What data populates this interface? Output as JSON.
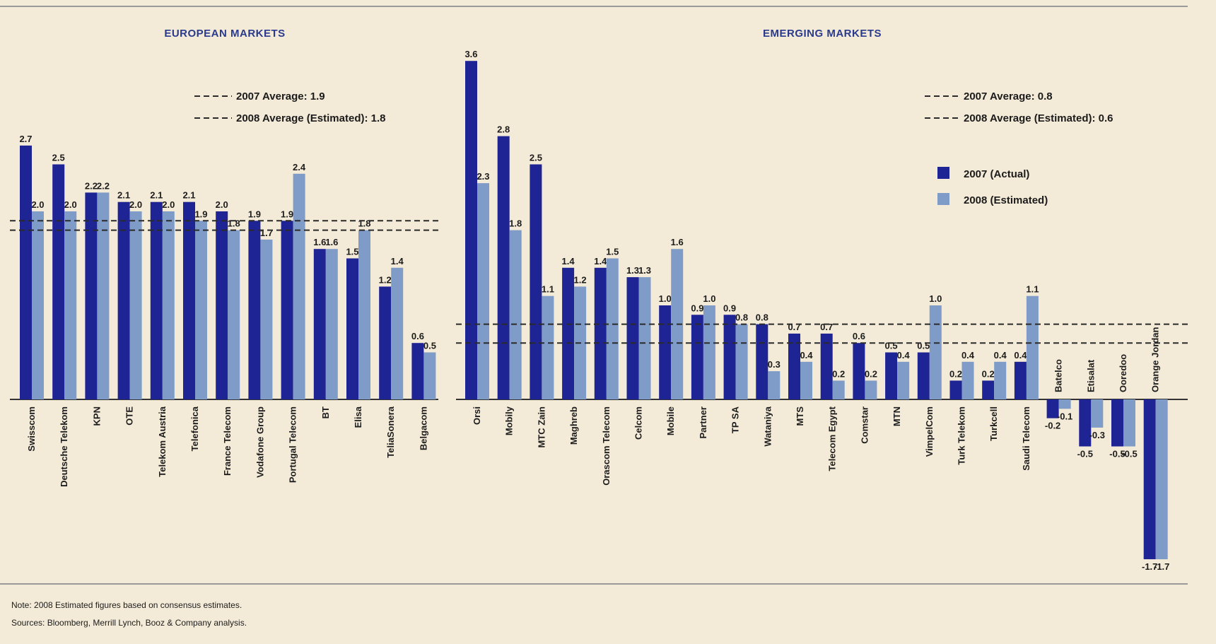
{
  "chart_data": [
    {
      "type": "bar",
      "title": "EUROPEAN MARKETS",
      "categories": [
        "Swisscom",
        "Deutsche Telekom",
        "KPN",
        "OTE",
        "Telekom Austria",
        "Telefonica",
        "France Telecom",
        "Vodafone Group",
        "Portugal Telecom",
        "BT",
        "Elisa",
        "TeliaSonera",
        "Belgacom"
      ],
      "series": [
        {
          "name": "2007 (Actual)",
          "values": [
            2.7,
            2.5,
            2.2,
            2.1,
            2.1,
            2.1,
            2.0,
            1.9,
            1.9,
            1.6,
            1.5,
            1.2,
            0.6
          ]
        },
        {
          "name": "2008 (Estimated)",
          "values": [
            2.0,
            2.0,
            2.2,
            2.0,
            2.0,
            1.9,
            1.8,
            1.7,
            2.4,
            1.6,
            1.8,
            1.4,
            0.5
          ]
        }
      ],
      "value_labels": [
        [
          "2.7",
          "2.5",
          "2.2",
          "2.1",
          "2.1",
          "2.1",
          "2.0",
          "1.9",
          "1.9",
          "1.6",
          "1.5",
          "1.2",
          "0.6"
        ],
        [
          "2.0",
          "2.0",
          "2.2",
          "2.0",
          "2.0",
          "1.9",
          "1.8",
          "1.7",
          "2.4",
          "1.6",
          "1.8",
          "1.4",
          "0.5"
        ]
      ],
      "reference_lines": [
        {
          "label": "2007 Average: 1.9",
          "value": 1.9
        },
        {
          "label": "2008 Average (Estimated): 1.8",
          "value": 1.8
        }
      ],
      "ylim": [
        -1.9,
        3.6
      ],
      "xlabel": "",
      "ylabel": ""
    },
    {
      "type": "bar",
      "title": "EMERGING MARKETS",
      "categories": [
        "Orsi",
        "Mobily",
        "MTC Zain",
        "Maghreb",
        "Orascom Telecom",
        "Celcom",
        "Mobile",
        "Partner",
        "TP SA",
        "Wataniya",
        "MTS",
        "Telecom Egypt",
        "Comstar",
        "MTN",
        "VimpelCom",
        "Turk Telekom",
        "Turkcell",
        "Saudi Telecom",
        "Batelco",
        "Etisalat",
        "Ooredoo",
        "Orange Jordan"
      ],
      "series": [
        {
          "name": "2007 (Actual)",
          "values": [
            3.6,
            2.8,
            2.5,
            1.4,
            1.4,
            1.3,
            1.0,
            0.9,
            0.9,
            0.8,
            0.7,
            0.7,
            0.6,
            0.5,
            0.5,
            0.2,
            0.2,
            0.4,
            -0.2,
            -0.5,
            -0.5,
            -1.7
          ]
        },
        {
          "name": "2008 (Estimated)",
          "values": [
            2.3,
            1.8,
            1.1,
            1.2,
            1.5,
            1.3,
            1.6,
            1.0,
            0.8,
            0.3,
            0.4,
            0.2,
            0.2,
            0.4,
            1.0,
            0.4,
            0.4,
            1.1,
            -0.1,
            -0.3,
            -0.5,
            -1.7
          ]
        }
      ],
      "value_labels": [
        [
          "3.6",
          "2.8",
          "2.5",
          "1.4",
          "1.4",
          "1.3",
          "1.0",
          "0.9",
          "0.9",
          "0.8",
          "0.7",
          "0.7",
          "0.6",
          "0.5",
          "0.5",
          "0.2",
          "0.2",
          "0.4",
          "-0.2",
          "-0.5",
          "-0.5",
          "-1.7"
        ],
        [
          "2.3",
          "1.8",
          "1.1",
          "1.2",
          "1.5",
          "1.3",
          "1.6",
          "1.0",
          "0.8",
          "0.3",
          "0.4",
          "0.2",
          "0.2",
          "0.4",
          "1.0",
          "0.4",
          "0.4",
          "1.1",
          "-0.1",
          "-0.3",
          "-0.5",
          "-1.7"
        ]
      ],
      "reference_lines": [
        {
          "label": "2007 Average: 0.8",
          "value": 0.8
        },
        {
          "label": "2008 Average (Estimated): 0.6",
          "value": 0.6
        }
      ],
      "ylim": [
        -1.9,
        3.6
      ],
      "xlabel": "",
      "ylabel": ""
    }
  ],
  "legend": {
    "items": [
      "2007 (Actual)",
      "2008 (Estimated)"
    ],
    "placement": "top-right"
  },
  "colors": {
    "background": "#f3ead7",
    "series_2007": "#1f2494",
    "series_2008": "#7f9cc8",
    "title": "#2a3a8c",
    "reference_line": "#2a2a2a"
  },
  "notes": {
    "note": "Note: 2008 Estimated figures based on consensus estimates.",
    "sources": "Sources: Bloomberg, Merrill Lynch, Booz & Company analysis."
  }
}
